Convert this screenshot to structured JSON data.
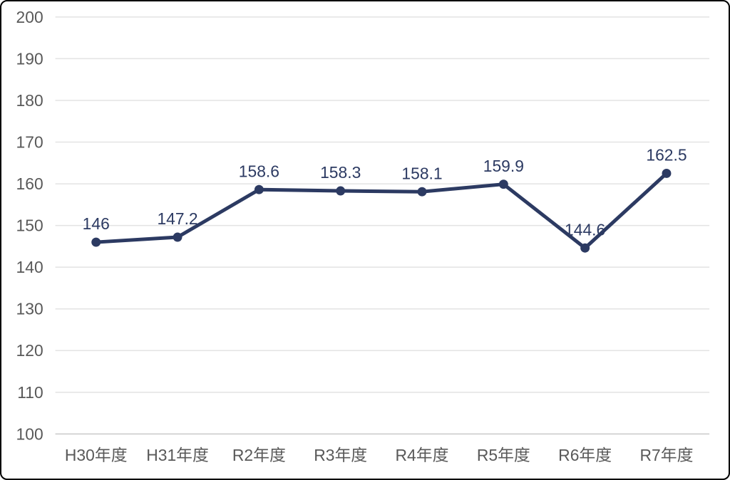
{
  "chart_data": {
    "type": "line",
    "title": "",
    "categories": [
      "H30年度",
      "H31年度",
      "R2年度",
      "R3年度",
      "R4年度",
      "R5年度",
      "R6年度",
      "R7年度"
    ],
    "series": [
      {
        "name": "",
        "values": [
          146,
          147.2,
          158.6,
          158.3,
          158.1,
          159.9,
          144.6,
          162.5
        ]
      }
    ],
    "data_labels": [
      "146",
      "147.2",
      "158.6",
      "158.3",
      "158.1",
      "159.9",
      "144.6",
      "162.5"
    ],
    "xlabel": "",
    "ylabel": "",
    "ylim": [
      100,
      200
    ],
    "ytick_step": 10,
    "yticks": [
      200,
      190,
      180,
      170,
      160,
      150,
      140,
      130,
      120,
      110,
      100
    ],
    "grid": true,
    "legend": "none",
    "colors": {
      "line": "#2C3A62",
      "marker": "#2C3A62",
      "data_label": "#2C3A62",
      "axis_text": "#595959",
      "gridline": "#E3E3E3",
      "axis_line": "#C9C9C9",
      "background": "#FFFFFF",
      "border": "#000000"
    }
  }
}
